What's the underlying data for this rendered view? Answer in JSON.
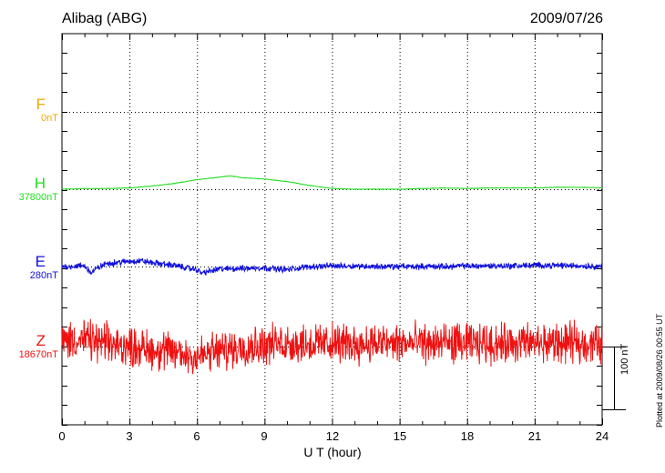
{
  "header": {
    "station": "Alibag (ABG)",
    "date": "2009/07/26"
  },
  "colors": {
    "F": "#f0a800",
    "H": "#22dd22",
    "E": "#1010dd",
    "Z": "#ee1111",
    "axis": "#000000"
  },
  "footer": {
    "plotted_note": "Plotted at 2009/08/26 00:55 UT"
  },
  "chart_data": {
    "type": "line",
    "xlabel": "U T (hour)",
    "xlim": [
      0,
      24
    ],
    "x_ticks": [
      "0",
      "3",
      "6",
      "9",
      "12",
      "15",
      "18",
      "21",
      "24"
    ],
    "scale_bar": "100 nT",
    "y_unit": "nT offset from baseline",
    "series": [
      {
        "name": "F",
        "baseline": "0nT",
        "x": [],
        "values": []
      },
      {
        "name": "H",
        "baseline": "37800nT",
        "x": [
          0,
          1,
          2,
          3,
          4,
          5,
          6,
          7,
          7.5,
          8,
          9,
          10,
          11,
          12,
          13,
          14,
          15,
          16,
          17,
          18,
          19,
          20,
          21,
          22,
          23,
          24
        ],
        "values": [
          0,
          1,
          1,
          2,
          5,
          9,
          15,
          19,
          21,
          18,
          16,
          12,
          6,
          1,
          0,
          0,
          0,
          1,
          2,
          1,
          2,
          2,
          2,
          3,
          3,
          2
        ],
        "noise": 0.6
      },
      {
        "name": "E",
        "baseline": "280nT",
        "x": [
          0,
          1,
          1.3,
          1.6,
          2,
          3,
          3.5,
          4,
          5,
          5.5,
          6,
          6.2,
          7,
          8,
          9,
          10,
          11,
          12,
          13,
          14,
          15,
          16,
          17,
          18,
          19,
          20,
          21,
          22,
          23,
          24
        ],
        "values": [
          0,
          1,
          -10,
          -2,
          5,
          8,
          9,
          6,
          2,
          -2,
          -5,
          -10,
          -4,
          -3,
          -2,
          -5,
          0,
          1,
          1,
          0,
          0,
          0,
          0,
          1,
          1,
          1,
          2,
          2,
          1,
          0
        ],
        "noise": 6
      },
      {
        "name": "Z",
        "baseline": "18670nT",
        "x": [
          0,
          1,
          2,
          3,
          4,
          5,
          6,
          7,
          8,
          9,
          10,
          11,
          12,
          13,
          14,
          15,
          16,
          17,
          18,
          19,
          20,
          21,
          22,
          23,
          24
        ],
        "values": [
          10,
          10,
          5,
          0,
          -5,
          -10,
          -15,
          -8,
          0,
          3,
          5,
          5,
          5,
          5,
          5,
          5,
          5,
          5,
          5,
          5,
          5,
          5,
          5,
          5,
          5
        ],
        "noise": 38
      }
    ]
  }
}
